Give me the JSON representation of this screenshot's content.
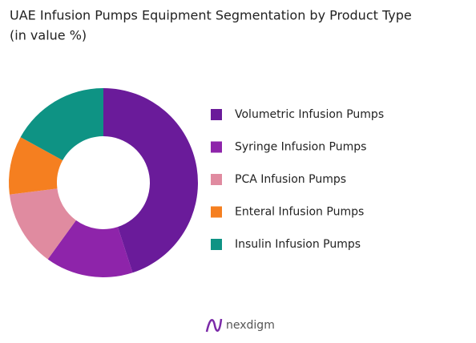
{
  "chart_data": {
    "type": "donut",
    "title": "UAE Infusion Pumps Equipment Segmentation by Product Type",
    "subtitle": "(in value %)",
    "categories": [
      "Volumetric Infusion Pumps",
      "Syringe Infusion Pumps",
      "PCA Infusion Pumps",
      "Enteral Infusion Pumps",
      "Insulin Infusion Pumps"
    ],
    "values": [
      45,
      15,
      13,
      10,
      17
    ],
    "colors": [
      "#6a1b9a",
      "#8e24aa",
      "#e08ba0",
      "#f57f20",
      "#0e9384"
    ],
    "legend": "right"
  },
  "logo": "nexdigm"
}
